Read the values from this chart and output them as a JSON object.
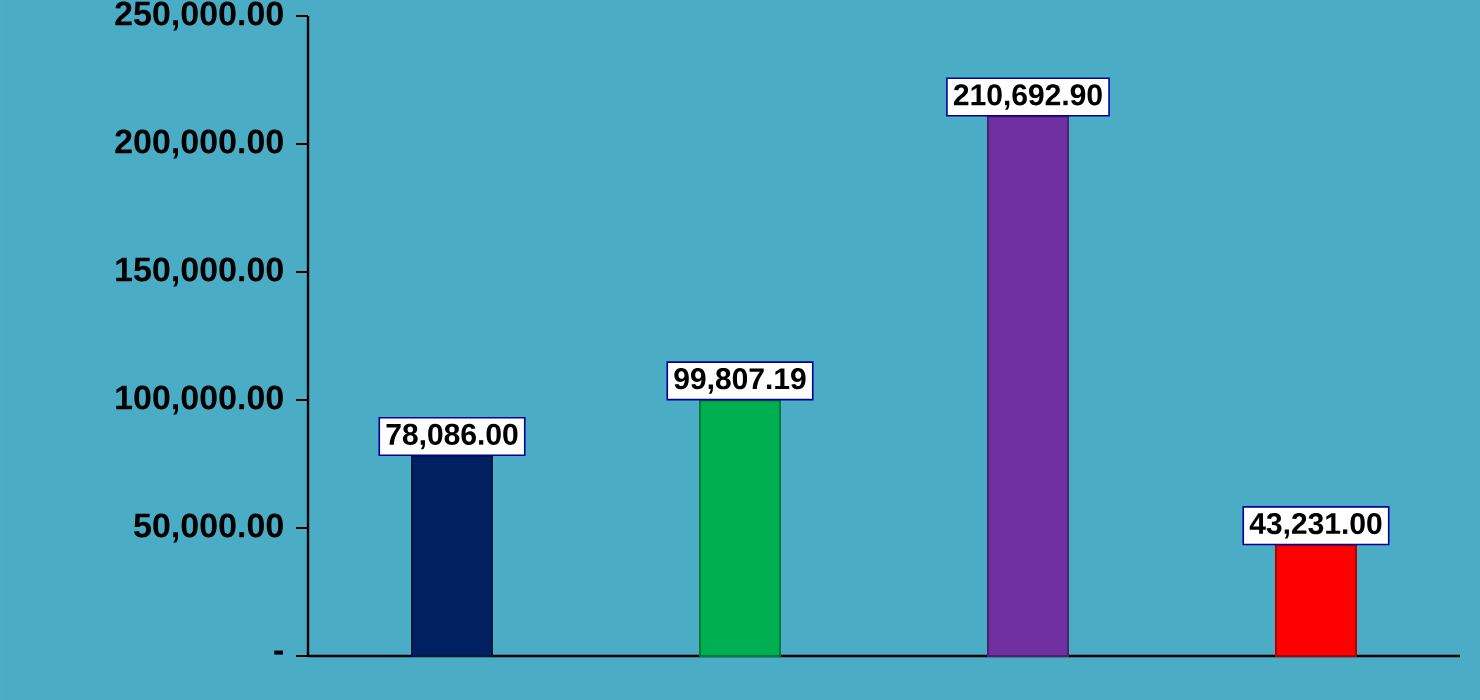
{
  "chart_data": {
    "type": "bar",
    "categories": [
      null,
      null,
      null,
      null
    ],
    "values": [
      78086.0,
      99807.19,
      210692.9,
      43231.0
    ],
    "colors": [
      "#002060",
      "#00b050",
      "#7030a0",
      "#ff0000"
    ],
    "value_labels": [
      "78,086.00",
      "99,807.19",
      "210,692.90",
      "43,231.00"
    ],
    "ylim": [
      0,
      250000
    ],
    "yticks": [
      {
        "value": 0,
        "label": "-"
      },
      {
        "value": 50000,
        "label": "50,000.00"
      },
      {
        "value": 100000,
        "label": "100,000.00"
      },
      {
        "value": 150000,
        "label": "150,000.00"
      },
      {
        "value": 200000,
        "label": "200,000.00"
      },
      {
        "value": 250000,
        "label": "250,000.00"
      }
    ],
    "tick_labels": "y"
  }
}
